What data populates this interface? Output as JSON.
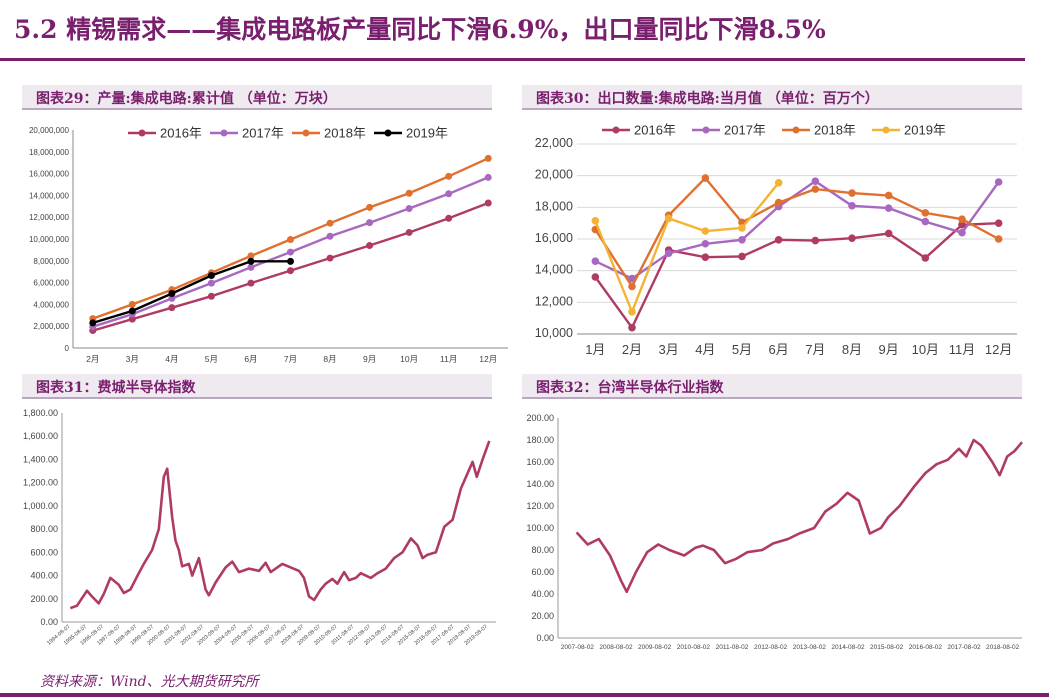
{
  "page": {
    "title": "5.2 精锡需求——集成电路板产量同比下滑6.9%，出口量同比下滑8.5%",
    "source": "资料来源：Wind、光大期货研究所"
  },
  "colors": {
    "brand": "#7a1f6e",
    "s2016": "#b03a66",
    "s2017": "#a868c0",
    "s2018": "#e07030",
    "s2019_black": "#000000",
    "s2019_yellow": "#f5b335",
    "index": "#b03a66"
  },
  "chart_data": [
    {
      "id": "fig29",
      "heading": "图表29：产量:集成电路:累计值 （单位：万块）",
      "type": "line",
      "categories": [
        "2月",
        "3月",
        "4月",
        "5月",
        "6月",
        "7月",
        "8月",
        "9月",
        "10月",
        "11月",
        "12月"
      ],
      "y_ticks": [
        "0",
        "2,000,000",
        "4,000,000",
        "6,000,000",
        "8,000,000",
        "10,000,000",
        "12,000,000",
        "14,000,000",
        "16,000,000",
        "18,000,000",
        "20,000,000"
      ],
      "ylim": [
        0,
        20000000
      ],
      "legend": "top",
      "series": [
        {
          "name": "2016年",
          "color": "#b03a66",
          "values": [
            1600000,
            2650000,
            3700000,
            4750000,
            5950000,
            7100000,
            8250000,
            9400000,
            10600000,
            11900000,
            13300000
          ]
        },
        {
          "name": "2017年",
          "color": "#a868c0",
          "values": [
            1950000,
            3100000,
            4550000,
            5950000,
            7400000,
            8800000,
            10250000,
            11500000,
            12800000,
            14150000,
            15650000
          ]
        },
        {
          "name": "2018年",
          "color": "#e07030",
          "values": [
            2700000,
            4000000,
            5350000,
            6900000,
            8450000,
            9950000,
            11450000,
            12900000,
            14200000,
            15750000,
            17400000
          ]
        },
        {
          "name": "2019年",
          "color": "#000000",
          "values": [
            2300000,
            3400000,
            5000000,
            6650000,
            7950000,
            7950000,
            null,
            null,
            null,
            null,
            null
          ]
        }
      ]
    },
    {
      "id": "fig30",
      "heading": "图表30：出口数量:集成电路:当月值 （单位：百万个）",
      "type": "line",
      "categories": [
        "1月",
        "2月",
        "3月",
        "4月",
        "5月",
        "6月",
        "7月",
        "8月",
        "9月",
        "10月",
        "11月",
        "12月"
      ],
      "y_ticks": [
        "10,000",
        "12,000",
        "14,000",
        "16,000",
        "18,000",
        "20,000",
        "22,000"
      ],
      "ylim": [
        10000,
        22000
      ],
      "legend": "top",
      "series": [
        {
          "name": "2016年",
          "color": "#b03a66",
          "values": [
            13600,
            10400,
            15300,
            14850,
            14900,
            15950,
            15900,
            16050,
            16350,
            14800,
            16900,
            17000
          ]
        },
        {
          "name": "2017年",
          "color": "#a868c0",
          "values": [
            14600,
            13500,
            15100,
            15700,
            15950,
            18050,
            19650,
            18100,
            17950,
            17100,
            16400,
            19600
          ]
        },
        {
          "name": "2018年",
          "color": "#e07030",
          "values": [
            16600,
            13000,
            17500,
            19850,
            17050,
            18300,
            19150,
            18900,
            18750,
            17650,
            17250,
            16000
          ]
        },
        {
          "name": "2019年",
          "color": "#f5b335",
          "values": [
            17150,
            11400,
            17300,
            16500,
            16700,
            19550,
            null,
            null,
            null,
            null,
            null,
            null
          ]
        }
      ]
    },
    {
      "id": "fig31",
      "heading": "图表31：费城半导体指数",
      "type": "line",
      "x_ticks": [
        "1994-08-07",
        "1995-08-07",
        "1996-08-07",
        "1997-08-07",
        "1998-08-07",
        "1999-08-07",
        "2000-08-07",
        "2001-08-07",
        "2002-08-07",
        "2003-08-07",
        "2004-08-07",
        "2005-08-07",
        "2006-08-07",
        "2007-08-07",
        "2008-08-07",
        "2009-08-07",
        "2010-08-07",
        "2011-08-07",
        "2012-08-07",
        "2013-08-07",
        "2014-08-07",
        "2015-08-07",
        "2016-08-07",
        "2017-08-07",
        "2018-08-07",
        "2019-08-07"
      ],
      "y_ticks": [
        "0.00",
        "200.00",
        "400.00",
        "600.00",
        "800.00",
        "1,000.00",
        "1,200.00",
        "1,400.00",
        "1,600.00",
        "1,800.00"
      ],
      "ylim": [
        0,
        1800
      ],
      "series": [
        {
          "name": "",
          "color": "#b03a66",
          "x": [
            1994.6,
            1995.0,
            1995.6,
            1995.9,
            1996.3,
            1996.6,
            1997.0,
            1997.5,
            1997.8,
            1998.2,
            1998.7,
            1999.0,
            1999.5,
            1999.9,
            2000.2,
            2000.4,
            2000.7,
            2000.9,
            2001.1,
            2001.3,
            2001.7,
            2001.9,
            2002.3,
            2002.7,
            2002.9,
            2003.3,
            2003.9,
            2004.3,
            2004.7,
            2005.3,
            2005.9,
            2006.3,
            2006.6,
            2007.3,
            2007.8,
            2008.3,
            2008.6,
            2008.9,
            2009.2,
            2009.6,
            2009.9,
            2010.3,
            2010.6,
            2011.0,
            2011.3,
            2011.7,
            2012.0,
            2012.6,
            2013.0,
            2013.5,
            2014.0,
            2014.5,
            2015.0,
            2015.4,
            2015.7,
            2016.0,
            2016.5,
            2017.0,
            2017.5,
            2018.0,
            2018.3,
            2018.7,
            2018.95,
            2019.3,
            2019.55,
            2019.7
          ],
          "values": [
            120,
            140,
            270,
            220,
            160,
            240,
            380,
            320,
            250,
            280,
            420,
            500,
            620,
            800,
            1250,
            1320,
            900,
            700,
            620,
            480,
            500,
            400,
            550,
            280,
            230,
            340,
            470,
            520,
            430,
            460,
            440,
            510,
            430,
            500,
            470,
            440,
            380,
            220,
            190,
            280,
            330,
            370,
            330,
            430,
            360,
            380,
            420,
            380,
            420,
            460,
            550,
            600,
            720,
            660,
            550,
            580,
            600,
            820,
            880,
            1150,
            1250,
            1380,
            1250,
            1400,
            1500,
            1560
          ]
        }
      ]
    },
    {
      "id": "fig32",
      "heading": "图表32：台湾半导体行业指数",
      "type": "line",
      "x_ticks": [
        "2007-08-02",
        "2008-08-02",
        "2009-08-02",
        "2010-08-02",
        "2011-08-02",
        "2012-08-02",
        "2013-08-02",
        "2014-08-02",
        "2015-08-02",
        "2016-08-02",
        "2017-08-02",
        "2018-08-02"
      ],
      "y_ticks": [
        "0.00",
        "20.00",
        "40.00",
        "60.00",
        "80.00",
        "100.00",
        "120.00",
        "140.00",
        "160.00",
        "180.00",
        "200.00"
      ],
      "ylim": [
        0,
        200
      ],
      "series": [
        {
          "name": "",
          "color": "#b03a66",
          "x": [
            2007.6,
            2007.9,
            2008.2,
            2008.5,
            2008.8,
            2008.95,
            2009.2,
            2009.5,
            2009.8,
            2010.1,
            2010.5,
            2010.8,
            2011.0,
            2011.3,
            2011.6,
            2011.9,
            2012.2,
            2012.6,
            2012.9,
            2013.3,
            2013.6,
            2014.0,
            2014.3,
            2014.6,
            2014.9,
            2015.2,
            2015.5,
            2015.8,
            2016.0,
            2016.3,
            2016.7,
            2017.0,
            2017.3,
            2017.6,
            2017.9,
            2018.1,
            2018.3,
            2018.5,
            2018.8,
            2019.0,
            2019.2,
            2019.4,
            2019.6
          ],
          "values": [
            96,
            85,
            90,
            75,
            52,
            42,
            60,
            78,
            85,
            80,
            75,
            82,
            84,
            80,
            68,
            72,
            78,
            80,
            86,
            90,
            95,
            100,
            115,
            122,
            132,
            125,
            95,
            100,
            110,
            120,
            138,
            150,
            158,
            162,
            172,
            165,
            180,
            175,
            160,
            148,
            165,
            170,
            178
          ]
        }
      ]
    }
  ]
}
